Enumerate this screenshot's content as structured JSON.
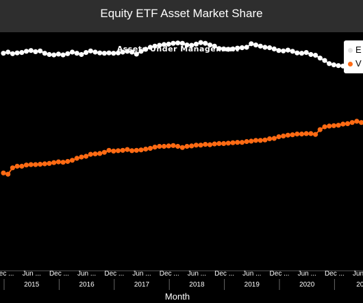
{
  "header": {
    "title": "Equity ETF Asset Market Share"
  },
  "colors": {
    "series_1": "#ffffff",
    "series_2": "#ff6a13",
    "header_bg": "#2e2e2e",
    "plot_bg": "#000000"
  },
  "chart_data": {
    "type": "line",
    "title": "Assets Under Management",
    "xlabel": "Month",
    "ylabel": "",
    "ylim": [
      0,
      60
    ],
    "x_start": "2014-12",
    "tick_labels": [
      "Dec ...",
      "Jun ...",
      "Dec ...",
      "Jun ...",
      "Dec ...",
      "Jun ...",
      "Dec ...",
      "Jun ...",
      "Dec ...",
      "Jun ...",
      "Dec ...",
      "Jun ...",
      "Dec ...",
      "Jun ..."
    ],
    "year_labels": [
      "2015",
      "2016",
      "2017",
      "2018",
      "2019",
      "2020",
      "202"
    ],
    "legend": {
      "position": "top-right",
      "labels": [
        "E",
        "V"
      ]
    },
    "series": [
      {
        "name": "E",
        "values": [
          54.7,
          55.0,
          54.6,
          54.8,
          54.9,
          55.2,
          55.4,
          55.1,
          55.3,
          54.7,
          54.4,
          54.3,
          54.5,
          54.3,
          54.6,
          55.0,
          54.7,
          54.4,
          54.9,
          55.3,
          55.0,
          54.8,
          54.7,
          54.8,
          54.7,
          54.8,
          55.0,
          55.2,
          55.0,
          54.5,
          55.2,
          55.7,
          56.2,
          56.5,
          56.7,
          56.9,
          57.0,
          57.2,
          57.3,
          57.2,
          56.8,
          56.7,
          57.0,
          57.4,
          57.2,
          56.8,
          56.5,
          55.9,
          55.8,
          55.7,
          55.8,
          56.0,
          56.1,
          56.2,
          57.1,
          56.8,
          56.5,
          56.2,
          56.1,
          55.8,
          55.4,
          55.3,
          55.5,
          55.2,
          54.8,
          54.7,
          54.9,
          54.4,
          54.2,
          53.5,
          52.9,
          52.1,
          51.8,
          51.6,
          51.5,
          51.4,
          51.4,
          51.3,
          51.2,
          51.0,
          50.7,
          50.4,
          50.0,
          49.7,
          49.4
        ]
      },
      {
        "name": "V",
        "values": [
          24.6,
          24.3,
          25.9,
          26.3,
          26.3,
          26.6,
          26.7,
          26.7,
          26.8,
          26.9,
          27.0,
          27.2,
          27.4,
          27.3,
          27.5,
          27.8,
          28.3,
          28.6,
          28.8,
          29.3,
          29.4,
          29.5,
          29.8,
          30.3,
          30.1,
          30.2,
          30.3,
          30.5,
          30.2,
          30.3,
          30.4,
          30.6,
          30.8,
          31.1,
          31.3,
          31.3,
          31.4,
          31.5,
          31.3,
          31.0,
          31.3,
          31.4,
          31.6,
          31.6,
          31.8,
          31.7,
          31.9,
          32.0,
          32.0,
          32.1,
          32.2,
          32.3,
          32.3,
          32.5,
          32.6,
          32.8,
          32.8,
          32.9,
          33.2,
          33.3,
          33.7,
          33.9,
          34.1,
          34.2,
          34.4,
          34.4,
          34.5,
          34.5,
          34.3,
          35.5,
          36.2,
          36.4,
          36.5,
          36.6,
          36.9,
          37.0,
          37.3,
          37.6,
          37.3,
          37.3,
          37.4,
          37.5,
          37.8,
          37.9,
          38.0
        ]
      }
    ]
  }
}
